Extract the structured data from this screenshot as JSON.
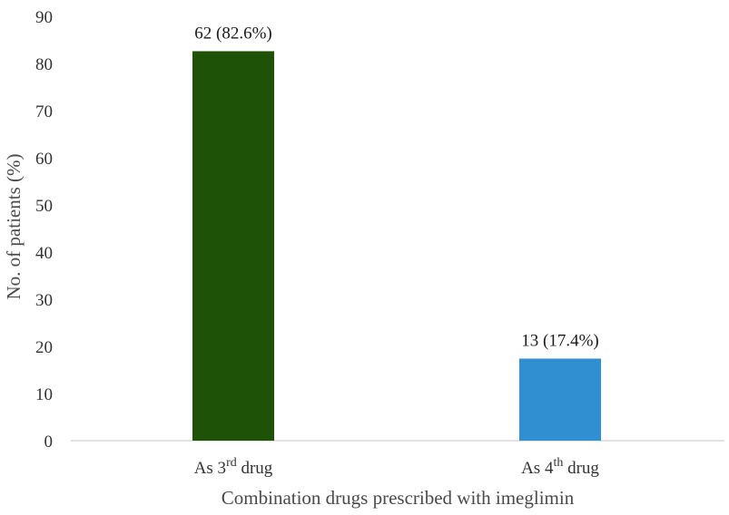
{
  "chart_data": {
    "type": "bar",
    "title": "",
    "xlabel": "Combination drugs prescribed with imeglimin",
    "ylabel": "No. of patients (%)",
    "ylim": [
      0,
      90
    ],
    "ytick_step": 10,
    "yticks": [
      "0",
      "10",
      "20",
      "30",
      "40",
      "50",
      "60",
      "70",
      "80",
      "90"
    ],
    "grid": false,
    "categories": [
      {
        "prefix": "As ",
        "number": "3",
        "sup": "rd",
        "suffix": " drug"
      },
      {
        "prefix": "As ",
        "number": "4",
        "sup": "th",
        "suffix": " drug"
      }
    ],
    "values": [
      82.6,
      17.4
    ],
    "data_labels": [
      "62 (82.6%)",
      "13 (17.4%)"
    ],
    "colors": [
      "#1e5207",
      "#2f8fd0"
    ]
  },
  "axis_color": "#d9d9d9"
}
